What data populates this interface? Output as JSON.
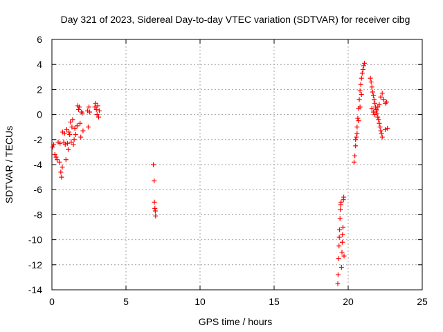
{
  "chart_data": {
    "type": "scatter",
    "title": "Day 321 of 2023, Sidereal Day-to-day VTEC variation (SDTVAR) for receiver cibg",
    "xlabel": "GPS time / hours",
    "ylabel": "SDTVAR / TECUs",
    "xlim": [
      0,
      25
    ],
    "ylim": [
      -14,
      6
    ],
    "xticks": [
      0,
      5,
      10,
      15,
      20,
      25
    ],
    "yticks": [
      -14,
      -12,
      -10,
      -8,
      -6,
      -4,
      -2,
      0,
      2,
      4,
      6
    ],
    "grid": true,
    "marker": "+",
    "color": "#ff0000",
    "series": [
      {
        "name": "SDTVAR",
        "points": [
          [
            0.05,
            -2.6
          ],
          [
            0.12,
            -2.4
          ],
          [
            0.2,
            -3.2
          ],
          [
            0.28,
            -3.4
          ],
          [
            0.35,
            -3.6
          ],
          [
            0.42,
            -2.2
          ],
          [
            0.5,
            -3.8
          ],
          [
            0.55,
            -2.3
          ],
          [
            0.6,
            -4.6
          ],
          [
            0.65,
            -5.0
          ],
          [
            0.7,
            -4.2
          ],
          [
            0.72,
            -1.4
          ],
          [
            0.8,
            -2.2
          ],
          [
            0.85,
            -1.5
          ],
          [
            0.9,
            -2.4
          ],
          [
            0.95,
            -3.6
          ],
          [
            1.0,
            -1.2
          ],
          [
            1.05,
            -2.3
          ],
          [
            1.1,
            -2.8
          ],
          [
            1.15,
            -1.4
          ],
          [
            1.2,
            -1.6
          ],
          [
            1.25,
            -0.6
          ],
          [
            1.3,
            -2.2
          ],
          [
            1.35,
            -1.0
          ],
          [
            1.4,
            -0.4
          ],
          [
            1.45,
            -2.4
          ],
          [
            1.5,
            -2.0
          ],
          [
            1.55,
            -1.1
          ],
          [
            1.6,
            -1.6
          ],
          [
            1.7,
            -0.9
          ],
          [
            1.75,
            0.7
          ],
          [
            1.8,
            0.4
          ],
          [
            1.85,
            0.6
          ],
          [
            1.9,
            -0.7
          ],
          [
            1.95,
            -1.8
          ],
          [
            2.0,
            0.2
          ],
          [
            2.05,
            0.1
          ],
          [
            2.1,
            -1.3
          ],
          [
            2.4,
            0.3
          ],
          [
            2.45,
            -1.0
          ],
          [
            2.5,
            0.6
          ],
          [
            2.55,
            0.2
          ],
          [
            2.9,
            0.6
          ],
          [
            2.95,
            0.9
          ],
          [
            3.0,
            0.4
          ],
          [
            3.05,
            0.0
          ],
          [
            3.1,
            0.7
          ],
          [
            3.15,
            -0.2
          ],
          [
            3.2,
            0.3
          ],
          [
            6.85,
            -4.0
          ],
          [
            6.9,
            -5.3
          ],
          [
            6.92,
            -7.0
          ],
          [
            6.95,
            -7.5
          ],
          [
            6.98,
            -7.7
          ],
          [
            7.0,
            -8.1
          ],
          [
            19.3,
            -13.5
          ],
          [
            19.32,
            -12.8
          ],
          [
            19.35,
            -11.5
          ],
          [
            19.38,
            -10.5
          ],
          [
            19.4,
            -9.8
          ],
          [
            19.42,
            -9.2
          ],
          [
            19.45,
            -8.3
          ],
          [
            19.48,
            -7.6
          ],
          [
            19.5,
            -7.2
          ],
          [
            19.52,
            -7.0
          ],
          [
            19.55,
            -12.2
          ],
          [
            19.58,
            -11.0
          ],
          [
            19.6,
            -10.2
          ],
          [
            19.62,
            -9.6
          ],
          [
            19.65,
            -9.0
          ],
          [
            19.68,
            -6.8
          ],
          [
            19.7,
            -6.6
          ],
          [
            19.72,
            -11.3
          ],
          [
            20.4,
            -3.8
          ],
          [
            20.45,
            -3.3
          ],
          [
            20.5,
            -2.5
          ],
          [
            20.55,
            -1.8
          ],
          [
            20.6,
            -1.0
          ],
          [
            20.65,
            -0.3
          ],
          [
            20.7,
            0.5
          ],
          [
            20.75,
            1.2
          ],
          [
            20.8,
            1.9
          ],
          [
            20.85,
            2.4
          ],
          [
            20.9,
            2.9
          ],
          [
            20.95,
            3.3
          ],
          [
            21.0,
            3.6
          ],
          [
            21.05,
            3.9
          ],
          [
            21.1,
            4.1
          ],
          [
            20.5,
            -2.0
          ],
          [
            20.6,
            -1.5
          ],
          [
            20.7,
            -0.5
          ],
          [
            20.8,
            0.6
          ],
          [
            20.9,
            1.6
          ],
          [
            21.5,
            2.9
          ],
          [
            21.55,
            2.6
          ],
          [
            21.6,
            2.2
          ],
          [
            21.65,
            1.8
          ],
          [
            21.7,
            1.5
          ],
          [
            21.75,
            1.2
          ],
          [
            21.8,
            0.9
          ],
          [
            21.85,
            0.6
          ],
          [
            21.9,
            0.4
          ],
          [
            21.95,
            0.1
          ],
          [
            22.0,
            -0.2
          ],
          [
            22.05,
            -0.4
          ],
          [
            22.1,
            -0.7
          ],
          [
            22.15,
            -1.0
          ],
          [
            22.2,
            -1.3
          ],
          [
            22.25,
            -1.5
          ],
          [
            22.3,
            -1.8
          ],
          [
            21.6,
            0.5
          ],
          [
            21.7,
            0.2
          ],
          [
            21.8,
            0.0
          ],
          [
            21.9,
            0.3
          ],
          [
            22.0,
            0.6
          ],
          [
            22.1,
            0.8
          ],
          [
            22.2,
            1.4
          ],
          [
            22.3,
            1.7
          ],
          [
            22.4,
            1.2
          ],
          [
            22.5,
            0.9
          ],
          [
            22.6,
            1.0
          ],
          [
            22.65,
            -1.1
          ],
          [
            22.5,
            -1.2
          ]
        ]
      }
    ]
  }
}
